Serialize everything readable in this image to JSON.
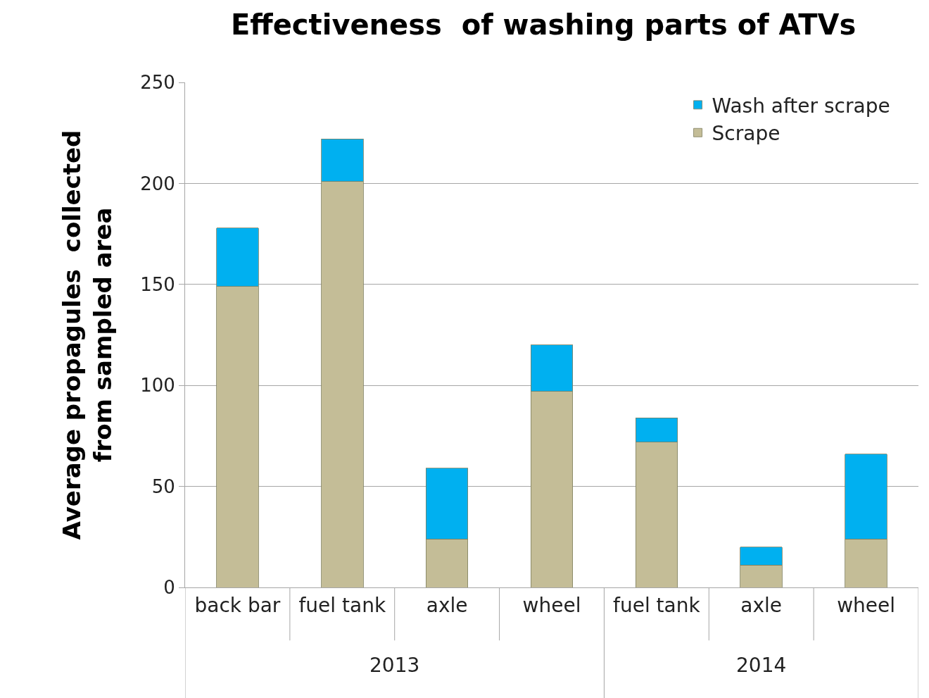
{
  "chart_data": {
    "type": "bar",
    "title": "Effectiveness  of washing parts of ATVs",
    "ylabel": "Average propagules  collected from sampled area",
    "categories": [
      "back bar",
      "fuel tank",
      "axle",
      "wheel",
      "fuel tank",
      "axle",
      "wheel"
    ],
    "series": [
      {
        "name": "Scrape",
        "color": "#c4bd97",
        "values": [
          149,
          201,
          24,
          97,
          72,
          11,
          24
        ]
      },
      {
        "name": "Wash after scrape",
        "color": "#00b0f0",
        "values": [
          29,
          21,
          35,
          23,
          12,
          9,
          42
        ]
      }
    ],
    "stacked": true,
    "ylim": [
      0,
      250
    ],
    "yticks": [
      0,
      50,
      100,
      150,
      200,
      250
    ],
    "grid": "y",
    "legend": "top right",
    "annotations": [
      "2013",
      "2014"
    ]
  }
}
